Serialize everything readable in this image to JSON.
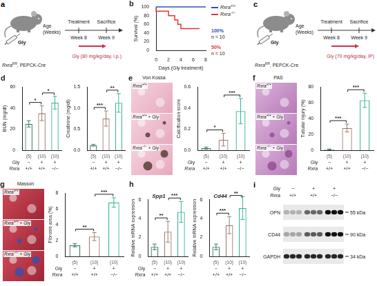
{
  "diagrams": [
    {
      "panel": "a",
      "drug": "Gly",
      "genotype": {
        "gene": "Rxra",
        "sup": "fl/fl",
        "rest": ", PEPCK-Cre"
      },
      "axis_label": "Age (Weeks)",
      "events": [
        {
          "label": "Treatment",
          "week": "Week 8"
        },
        {
          "label": "Sacrifice",
          "week": "Week 9"
        }
      ],
      "dose": "Gly (80 mg/kg/day, i.p.)"
    },
    {
      "panel": "c",
      "drug": "Gly",
      "genotype": {
        "gene": "Rxra",
        "sup": "fl/fl",
        "rest": ", PEPCK-Cre"
      },
      "axis_label": "Age (Weeks)",
      "events": [
        {
          "label": "Treatment",
          "week": "Week 8"
        },
        {
          "label": "Sacrifice",
          "week": "Week 9"
        }
      ],
      "dose": "Gly (70 mg/kg/day, IP)"
    }
  ],
  "chart_data": [
    {
      "panel": "b",
      "type": "line",
      "line_style": "step",
      "x_label": "Days (Gly treatment)",
      "y_label": "Survival (%)",
      "xlim": [
        0,
        8
      ],
      "xticks": [
        0,
        2,
        4,
        6,
        8
      ],
      "ylim": [
        0,
        100
      ],
      "yticks": [
        0,
        20,
        40,
        60,
        80,
        100
      ],
      "legend": "right",
      "series": [
        {
          "name": "Rxra+/+",
          "color": "#2e4fbf",
          "x": [
            0,
            8
          ],
          "values": [
            100,
            100
          ],
          "end_label": "100%",
          "n_label": "n = 10"
        },
        {
          "name": "Rxra−/−",
          "color": "#e2362f",
          "x": [
            0,
            2,
            3,
            3.5,
            4,
            5,
            7
          ],
          "values": [
            100,
            90,
            80,
            70,
            60,
            50,
            50
          ],
          "end_label": "50%",
          "n_label": "n = 10"
        }
      ]
    },
    {
      "panel": "d",
      "type": "bar",
      "y_label": "BUN (mg/dl)",
      "categories": [
        null,
        null,
        null
      ],
      "values": [
        25,
        35,
        45
      ],
      "errors": [
        3,
        7,
        6
      ],
      "colors": [
        "#3c7a66",
        "#9a7b6b",
        "#33b395"
      ],
      "ylim": [
        0,
        60
      ],
      "yticks": [
        0,
        20,
        40,
        60
      ],
      "tick_labels": "y",
      "significance": [
        {
          "pair": [
            0,
            1
          ],
          "label": "*"
        },
        {
          "pair": [
            1,
            2
          ],
          "label": "*"
        }
      ],
      "table": {
        "n": [
          "(5)",
          "(10)",
          "(10)"
        ],
        "rows": [
          {
            "label": "Gly",
            "cells": [
              "−",
              "+",
              "+"
            ]
          },
          {
            "label": "Rxra",
            "cells": [
              "+/+",
              "+/+",
              "−/−"
            ]
          }
        ]
      }
    },
    {
      "type": "bar",
      "y_label": "Creatinine (mg/dl)",
      "categories": [
        null,
        null,
        null
      ],
      "values": [
        0.12,
        0.75,
        1.12
      ],
      "errors": [
        0.02,
        0.18,
        0.22
      ],
      "colors": [
        "#3c7a66",
        "#9a7b6b",
        "#33b395"
      ],
      "ylim": [
        0,
        1.5
      ],
      "yticks": [
        {
          "value": 0,
          "label": "0.0"
        },
        0.5,
        {
          "value": 1,
          "label": "1.0"
        },
        1.5
      ],
      "tick_labels": "y",
      "significance": [
        {
          "pair": [
            0,
            1
          ],
          "label": "***"
        },
        {
          "pair": [
            1,
            2
          ],
          "label": "**"
        }
      ],
      "table": {
        "n": [
          "(5)",
          "(10)",
          "(10)"
        ],
        "rows": [
          {
            "cells": [
              "−",
              "+",
              "+"
            ]
          },
          {
            "cells": [
              "+/+",
              "+/+",
              "−/−"
            ]
          }
        ]
      }
    },
    {
      "type": "bar",
      "y_label": "Calcification score",
      "categories": [
        null,
        null,
        null
      ],
      "values": [
        0.02,
        0.1,
        0.37
      ],
      "errors": [
        0.01,
        0.06,
        0.12
      ],
      "colors": [
        "#3c7a66",
        "#9a7b6b",
        "#33b395"
      ],
      "ylim": [
        0,
        0.6
      ],
      "yticks": [
        {
          "value": 0,
          "label": "0.0"
        },
        0.2,
        0.4,
        0.6
      ],
      "tick_labels": "y",
      "significance": [
        {
          "pair": [
            0,
            1
          ],
          "label": "*"
        },
        {
          "pair": [
            1,
            2
          ],
          "label": "***"
        }
      ],
      "table": {
        "n": [
          "(5)",
          "(10)",
          "(10)"
        ],
        "rows": [
          {
            "label": "Gly",
            "cells": [
              "−",
              "+",
              "+"
            ]
          },
          {
            "label": "Rxra",
            "cells": [
              "+/+",
              "+/+",
              "−/−"
            ]
          }
        ]
      }
    },
    {
      "type": "bar",
      "y_label": "Tubular injury (%)",
      "categories": [
        null,
        null,
        null
      ],
      "values": [
        1,
        28,
        63
      ],
      "errors": [
        0.5,
        5,
        9
      ],
      "colors": [
        "#3c7a66",
        "#9a7b6b",
        "#33b395"
      ],
      "ylim": [
        0,
        80
      ],
      "yticks": [
        0,
        20,
        40,
        60,
        80
      ],
      "tick_labels": "y",
      "significance": [
        {
          "pair": [
            0,
            1
          ],
          "label": "***"
        },
        {
          "pair": [
            1,
            2
          ],
          "label": "***"
        }
      ],
      "table": {
        "n": [
          "(5)",
          "(10)",
          "(10)"
        ],
        "rows": [
          {
            "label": "Gly",
            "cells": [
              "−",
              "+",
              "+"
            ]
          },
          {
            "label": "Rxra",
            "cells": [
              "+/+",
              "+/+",
              "−/−"
            ]
          }
        ]
      }
    },
    {
      "type": "bar",
      "y_label": "Fibrosis area (%)",
      "categories": [
        null,
        null,
        null
      ],
      "values": [
        1.4,
        2.5,
        6.8
      ],
      "errors": [
        0.2,
        0.5,
        0.6
      ],
      "colors": [
        "#3c7a66",
        "#9a7b6b",
        "#33b395"
      ],
      "ylim": [
        0,
        8
      ],
      "yticks": [
        0,
        2,
        4,
        6,
        8
      ],
      "tick_labels": "y",
      "significance": [
        {
          "pair": [
            0,
            1
          ],
          "label": "**"
        },
        {
          "pair": [
            1,
            2
          ],
          "label": "***"
        }
      ],
      "table": {
        "n": [
          "(5)",
          "(10)",
          "(10)"
        ],
        "rows": [
          {
            "label": "Gly",
            "cells": [
              "−",
              "+",
              "+"
            ]
          },
          {
            "label": "Rxra",
            "cells": [
              "+/+",
              "+/+",
              "−/−"
            ]
          }
        ]
      }
    },
    {
      "panel": "h",
      "type": "bar",
      "title": "Spp1",
      "y_label": "Relative mRNA expression",
      "categories": [
        null,
        null,
        null
      ],
      "values": [
        1,
        2.6,
        4.7
      ],
      "errors": [
        0.3,
        1.1,
        1.1
      ],
      "colors": [
        "#3c7a66",
        "#9a7b6b",
        "#33b395"
      ],
      "ylim": [
        0,
        6
      ],
      "yticks": [
        0,
        2,
        4,
        6
      ],
      "tick_labels": "y",
      "significance": [
        {
          "pair": [
            0,
            1
          ],
          "label": "**"
        },
        {
          "pair": [
            1,
            2
          ],
          "label": "***"
        }
      ],
      "table": {
        "n": [
          "(5)",
          "(10)",
          "(10)"
        ],
        "rows": [
          {
            "label": "Gly",
            "cells": [
              "−",
              "+",
              "+"
            ]
          },
          {
            "label": "Rxra",
            "cells": [
              "+/+",
              "+/+",
              "−/−"
            ]
          }
        ]
      }
    },
    {
      "type": "bar",
      "title": "Cd44",
      "y_label": "Relative mRNA expression",
      "categories": [
        null,
        null,
        null
      ],
      "values": [
        1,
        3.3,
        5.1
      ],
      "errors": [
        0.3,
        0.9,
        1.2
      ],
      "colors": [
        "#3c7a66",
        "#9a7b6b",
        "#33b395"
      ],
      "ylim": [
        0,
        6
      ],
      "yticks": [
        0,
        2,
        4,
        6
      ],
      "tick_labels": "y",
      "significance": [
        {
          "pair": [
            0,
            1
          ],
          "label": "***"
        },
        {
          "pair": [
            1,
            2
          ],
          "label": "**"
        }
      ],
      "table": {
        "n": [
          "(5)",
          "(10)",
          "(10)"
        ],
        "rows": [
          {
            "cells": [
              "−",
              "+",
              "+"
            ]
          },
          {
            "cells": [
              "+/+",
              "+/+",
              "−/−"
            ]
          }
        ]
      }
    }
  ],
  "images": [
    {
      "panel": "e",
      "stain": "Von Kossa",
      "rows": [
        "Rxra+/+",
        "Rxra+/+ + Gly",
        "Rxra−/− + Gly"
      ]
    },
    {
      "panel": "f",
      "stain": "PAS",
      "rows": [
        "Rxra+/+",
        "Rxra+/+ + Gly",
        "Rxra−/− + Gly"
      ]
    },
    {
      "panel": "g",
      "stain": "Masson",
      "rows": [
        "Rxra+/+",
        "Rxra+/+ + Gly",
        "Rxra−/− + Gly"
      ]
    }
  ],
  "blot": {
    "panel": "i",
    "table": {
      "rows": [
        {
          "label": "Gly",
          "cells": [
            "−",
            "+",
            "+"
          ]
        },
        {
          "label": "Rxra",
          "cells": [
            "+/+",
            "+/+",
            "−/−"
          ]
        }
      ]
    },
    "bands": [
      {
        "name": "OPN",
        "size": "55 kDa",
        "intensity": [
          0.25,
          0.6,
          1
        ]
      },
      {
        "name": "CD44",
        "size": "90 kDa",
        "intensity": [
          0.3,
          0.65,
          1
        ]
      },
      {
        "name": "GAPDH",
        "size": "34 kDa",
        "intensity": [
          0.9,
          0.9,
          0.9
        ]
      }
    ]
  }
}
